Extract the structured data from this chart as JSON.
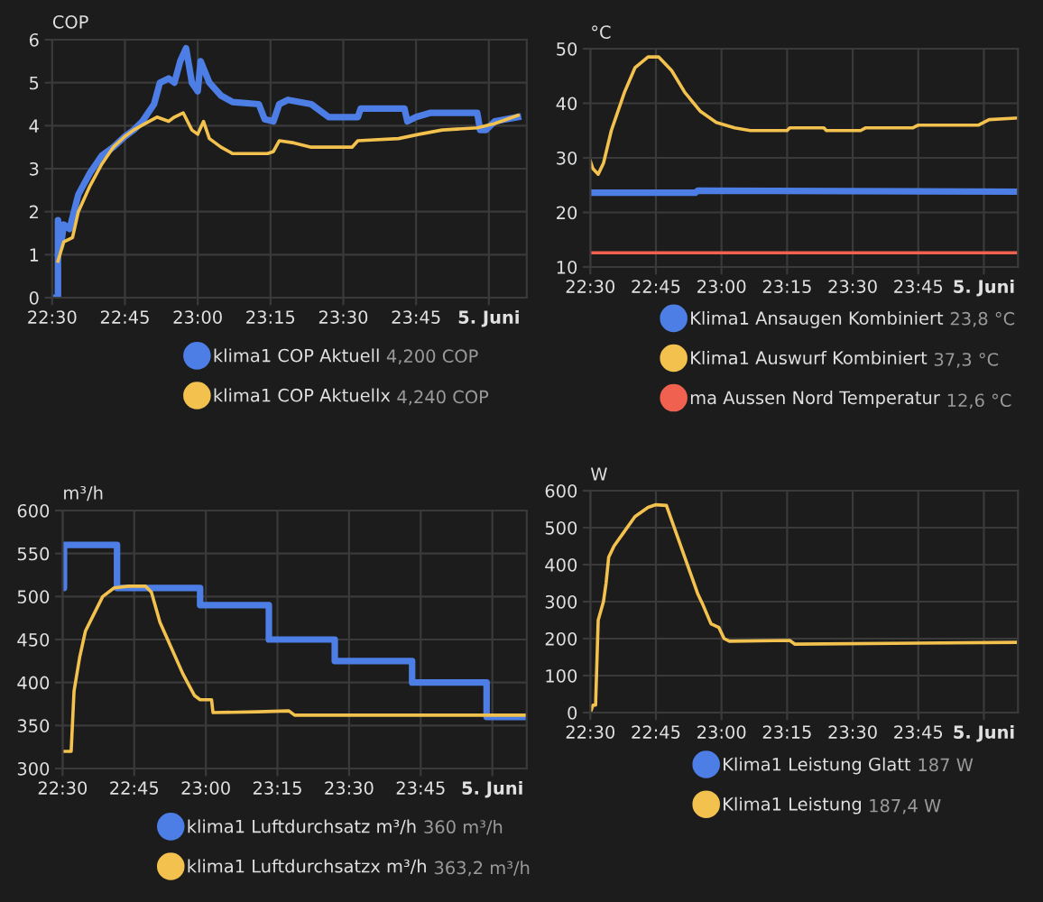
{
  "chart_data": [
    {
      "type": "line",
      "ylabel": "COP",
      "xlim": [
        22.5,
        24.13
      ],
      "ylim": [
        0,
        6
      ],
      "yticks": [
        0,
        1,
        2,
        3,
        4,
        5,
        6
      ],
      "xticks": [
        {
          "value": 22.5,
          "label": "22:30"
        },
        {
          "value": 22.75,
          "label": "22:45"
        },
        {
          "value": 23,
          "label": "23:00"
        },
        {
          "value": 23.25,
          "label": "23:15"
        },
        {
          "value": 23.5,
          "label": "23:30"
        },
        {
          "value": 23.75,
          "label": "23:45"
        },
        {
          "value": 24,
          "label": "5. Juni"
        }
      ],
      "grid": true,
      "legend": "bottom",
      "annotations": [
        "4,200 COP",
        "4,240 COP"
      ],
      "series": [
        {
          "name": "klima1 COP Aktuell",
          "color": "#4d7ee6",
          "x": [
            22.5,
            22.52,
            22.52,
            22.53,
            22.54,
            22.56,
            22.59,
            22.63,
            22.67,
            22.69,
            22.71,
            22.75,
            22.78,
            22.81,
            22.85,
            22.87,
            22.9,
            22.92,
            22.94,
            22.96,
            22.98,
            23.0,
            23.01,
            23.04,
            23.08,
            23.12,
            23.21,
            23.23,
            23.26,
            23.28,
            23.31,
            23.39,
            23.45,
            23.55,
            23.56,
            23.71,
            23.72,
            23.75,
            23.8,
            23.96,
            23.97,
            23.99,
            24.02,
            24.1
          ],
          "values": [
            0,
            0,
            1.8,
            1.2,
            1.7,
            1.6,
            2.4,
            2.9,
            3.3,
            3.4,
            3.5,
            3.75,
            3.9,
            4.1,
            4.5,
            5.0,
            5.1,
            5.0,
            5.5,
            5.8,
            5.0,
            4.8,
            5.5,
            5.0,
            4.7,
            4.55,
            4.5,
            4.15,
            4.1,
            4.5,
            4.6,
            4.5,
            4.2,
            4.2,
            4.4,
            4.4,
            4.1,
            4.2,
            4.3,
            4.3,
            3.9,
            3.9,
            4.1,
            4.2
          ]
        },
        {
          "name": "klima1 COP Aktuellx",
          "color": "#f2c14e",
          "x": [
            22.52,
            22.54,
            22.57,
            22.59,
            22.63,
            22.67,
            22.71,
            22.75,
            22.78,
            22.82,
            22.86,
            22.9,
            22.92,
            22.95,
            22.98,
            23.0,
            23.02,
            23.04,
            23.08,
            23.12,
            23.24,
            23.26,
            23.28,
            23.33,
            23.39,
            23.53,
            23.55,
            23.69,
            23.76,
            23.84,
            23.96,
            24.02,
            24.1
          ],
          "values": [
            0.85,
            1.3,
            1.4,
            2.0,
            2.6,
            3.1,
            3.5,
            3.75,
            3.9,
            4.05,
            4.2,
            4.1,
            4.2,
            4.3,
            3.9,
            3.8,
            4.1,
            3.7,
            3.5,
            3.35,
            3.35,
            3.4,
            3.65,
            3.6,
            3.5,
            3.5,
            3.65,
            3.7,
            3.8,
            3.9,
            3.95,
            4.05,
            4.24
          ]
        }
      ]
    },
    {
      "type": "line",
      "ylabel": "°C",
      "xlim": [
        22.5,
        24.13
      ],
      "ylim": [
        10,
        50
      ],
      "yticks": [
        10,
        20,
        30,
        40,
        50
      ],
      "xticks": [
        {
          "value": 22.5,
          "label": "22:30"
        },
        {
          "value": 22.75,
          "label": "22:45"
        },
        {
          "value": 23,
          "label": "23:00"
        },
        {
          "value": 23.25,
          "label": "23:15"
        },
        {
          "value": 23.5,
          "label": "23:30"
        },
        {
          "value": 23.75,
          "label": "23:45"
        },
        {
          "value": 24,
          "label": "5. Juni"
        }
      ],
      "grid": true,
      "legend": "bottom",
      "annotations": [
        "23,8 °C",
        "37,3 °C",
        "12,6 °C"
      ],
      "series": [
        {
          "name": "Klima1 Ansaugen Kombiniert",
          "color": "#4d7ee6",
          "x": [
            22.5,
            22.9,
            22.91,
            24.13
          ],
          "values": [
            23.6,
            23.6,
            24,
            23.8
          ]
        },
        {
          "name": "Klima1 Auswurf Kombiniert",
          "color": "#f2c14e",
          "x": [
            22.5,
            22.51,
            22.53,
            22.55,
            22.58,
            22.63,
            22.67,
            22.72,
            22.76,
            22.81,
            22.86,
            22.92,
            22.98,
            23.05,
            23.11,
            23.25,
            23.26,
            23.39,
            23.4,
            23.53,
            23.55,
            23.73,
            23.75,
            23.98,
            24.0,
            24.02,
            24.13
          ],
          "values": [
            29.4,
            28,
            27,
            29,
            35,
            42,
            46.5,
            48.5,
            48.5,
            46,
            42,
            38.5,
            36.5,
            35.5,
            35,
            35,
            35.5,
            35.5,
            35,
            35,
            35.5,
            35.5,
            36,
            36,
            36.5,
            37,
            37.3
          ]
        },
        {
          "name": "ma Aussen Nord Temperatur",
          "color": "#f0614f",
          "x": [
            22.5,
            24.13
          ],
          "values": [
            12.6,
            12.6
          ]
        }
      ]
    },
    {
      "type": "line",
      "ylabel": "m³/h",
      "xlim": [
        22.5,
        24.12
      ],
      "ylim": [
        300,
        600
      ],
      "yticks": [
        300,
        350,
        400,
        450,
        500,
        550,
        600
      ],
      "xticks": [
        {
          "value": 22.5,
          "label": "22:30"
        },
        {
          "value": 22.75,
          "label": "22:45"
        },
        {
          "value": 23,
          "label": "23:00"
        },
        {
          "value": 23.25,
          "label": "23:15"
        },
        {
          "value": 23.5,
          "label": "23:30"
        },
        {
          "value": 23.75,
          "label": "23:45"
        },
        {
          "value": 24,
          "label": "5. Juni"
        }
      ],
      "grid": true,
      "legend": "bottom",
      "annotations": [
        "360 m³/h",
        "363,2 m³/h"
      ],
      "series": [
        {
          "name": "klima1 Luftdurchsatz m³/h",
          "color": "#4d7ee6",
          "type": "step",
          "x": [
            22.5,
            22.505,
            22.69,
            22.98,
            23.22,
            23.45,
            23.72,
            23.98,
            24.12
          ],
          "values": [
            510,
            560,
            510,
            490,
            450,
            425,
            400,
            360,
            360
          ]
        },
        {
          "name": "klima1 Luftdurchsatzx m³/h",
          "color": "#f2c14e",
          "x": [
            22.5,
            22.53,
            22.54,
            22.56,
            22.58,
            22.61,
            22.64,
            22.68,
            22.73,
            22.79,
            22.81,
            22.84,
            22.88,
            22.92,
            22.96,
            22.98,
            23.02,
            23.025,
            23.18,
            23.29,
            23.31,
            24.12
          ],
          "values": [
            320,
            320,
            390,
            430,
            460,
            480,
            500,
            510,
            512,
            512,
            505,
            470,
            440,
            410,
            385,
            380,
            380,
            365,
            366,
            367,
            362,
            362
          ]
        }
      ]
    },
    {
      "type": "line",
      "ylabel": "W",
      "xlim": [
        22.5,
        24.13
      ],
      "ylim": [
        0,
        600
      ],
      "yticks": [
        0,
        100,
        200,
        300,
        400,
        500,
        600
      ],
      "xticks": [
        {
          "value": 22.5,
          "label": "22:30"
        },
        {
          "value": 22.75,
          "label": "22:45"
        },
        {
          "value": 23,
          "label": "23:00"
        },
        {
          "value": 23.25,
          "label": "23:15"
        },
        {
          "value": 23.5,
          "label": "23:30"
        },
        {
          "value": 23.75,
          "label": "23:45"
        },
        {
          "value": 24,
          "label": "5. Juni"
        }
      ],
      "grid": true,
      "legend": "bottom",
      "annotations": [
        "187 W",
        "187,4 W"
      ],
      "series": [
        {
          "name": "Klima1 Leistung Glatt",
          "color": "#4d7ee6"
        },
        {
          "name": "Klima1 Leistung",
          "color": "#f2c14e",
          "x": [
            22.5,
            22.51,
            22.52,
            22.53,
            22.55,
            22.56,
            22.57,
            22.59,
            22.63,
            22.67,
            22.72,
            22.75,
            22.79,
            22.81,
            22.84,
            22.86,
            22.89,
            22.91,
            22.93,
            22.96,
            22.99,
            23.01,
            23.03,
            23.26,
            23.28,
            24.12
          ],
          "values": [
            0,
            20,
            20,
            250,
            300,
            350,
            420,
            450,
            490,
            530,
            555,
            562,
            560,
            520,
            460,
            420,
            360,
            320,
            290,
            240,
            230,
            200,
            193,
            195,
            185,
            190
          ]
        }
      ]
    }
  ]
}
